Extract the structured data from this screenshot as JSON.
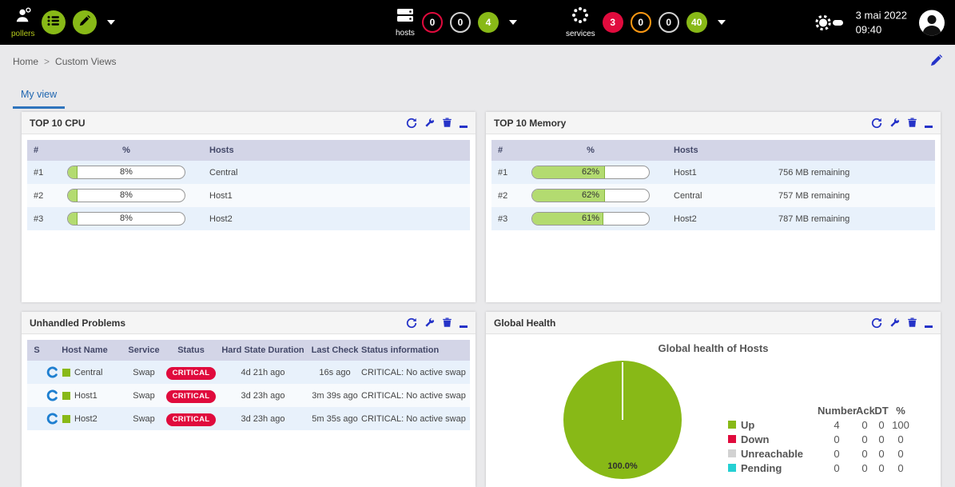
{
  "app": {
    "date": "3 mai 2022",
    "time": "09:40"
  },
  "header": {
    "pollers_label": "pollers",
    "hosts_label": "hosts",
    "hosts_badges": {
      "down": "0",
      "unreachable": "0",
      "up": "4"
    },
    "services_label": "services",
    "services_badges": {
      "critical": "3",
      "warning": "0",
      "unknown": "0",
      "ok": "40"
    }
  },
  "breadcrumb": {
    "items": [
      "Home",
      "Custom Views"
    ],
    "separator": ">"
  },
  "tabs": {
    "my_view": "My view"
  },
  "panels": {
    "cpu": {
      "title": "TOP 10 CPU",
      "columns": [
        "#",
        "%",
        "Hosts"
      ],
      "rows": [
        {
          "rank": "#1",
          "pct": "8%",
          "host": "Central"
        },
        {
          "rank": "#2",
          "pct": "8%",
          "host": "Host1"
        },
        {
          "rank": "#3",
          "pct": "8%",
          "host": "Host2"
        }
      ]
    },
    "memory": {
      "title": "TOP 10 Memory",
      "columns": [
        "#",
        "%",
        "Hosts"
      ],
      "rows": [
        {
          "rank": "#1",
          "pct": "62%",
          "host": "Host1",
          "remaining": "756 MB remaining"
        },
        {
          "rank": "#2",
          "pct": "62%",
          "host": "Central",
          "remaining": "757 MB remaining"
        },
        {
          "rank": "#3",
          "pct": "61%",
          "host": "Host2",
          "remaining": "787 MB remaining"
        }
      ]
    },
    "problems": {
      "title": "Unhandled Problems",
      "columns": [
        "S",
        "Host Name",
        "Service",
        "Status",
        "Hard State Duration",
        "Last Check",
        "Status information"
      ],
      "rows": [
        {
          "host": "Central",
          "service": "Swap",
          "status": "CRITICAL",
          "duration": "4d 21h ago",
          "last_check": "16s ago",
          "info": "CRITICAL: No active swap"
        },
        {
          "host": "Host1",
          "service": "Swap",
          "status": "CRITICAL",
          "duration": "3d 23h ago",
          "last_check": "3m 39s ago",
          "info": "CRITICAL: No active swap"
        },
        {
          "host": "Host2",
          "service": "Swap",
          "status": "CRITICAL",
          "duration": "3d 23h ago",
          "last_check": "5m 35s ago",
          "info": "CRITICAL: No active swap"
        }
      ]
    },
    "health": {
      "title": "Global Health",
      "chart_title": "Global health of Hosts",
      "pie_label": "100.0%",
      "legend_headers": [
        "Number",
        "Ack",
        "DT",
        "%"
      ],
      "legend": [
        {
          "label": "Up",
          "color": "#88b917",
          "number": "4",
          "ack": "0",
          "dt": "0",
          "pct": "100"
        },
        {
          "label": "Down",
          "color": "#e00b3d",
          "number": "0",
          "ack": "0",
          "dt": "0",
          "pct": "0"
        },
        {
          "label": "Unreachable",
          "color": "#d2d2d2",
          "number": "0",
          "ack": "0",
          "dt": "0",
          "pct": "0"
        },
        {
          "label": "Pending",
          "color": "#25d0d3",
          "number": "0",
          "ack": "0",
          "dt": "0",
          "pct": "0"
        }
      ]
    }
  },
  "colors": {
    "brand_green": "#88b917",
    "critical_red": "#e00b3d",
    "warning_orange": "#ff9913",
    "pending_cyan": "#25d0d3",
    "unreachable_gray": "#d2d2d2",
    "icon_blue": "#2533c8",
    "pie_fill": "#88b917"
  },
  "chart_data": {
    "type": "pie",
    "title": "Global health of Hosts",
    "labels": [
      "Up",
      "Down",
      "Unreachable",
      "Pending"
    ],
    "values": [
      100,
      0,
      0,
      0
    ],
    "counts": [
      4,
      0,
      0,
      0
    ],
    "acks": [
      0,
      0,
      0,
      0
    ],
    "downtimes": [
      0,
      0,
      0,
      0
    ],
    "colors": [
      "#88b917",
      "#e00b3d",
      "#d2d2d2",
      "#25d0d3"
    ],
    "center_label": "100.0%",
    "legend_position": "right"
  }
}
